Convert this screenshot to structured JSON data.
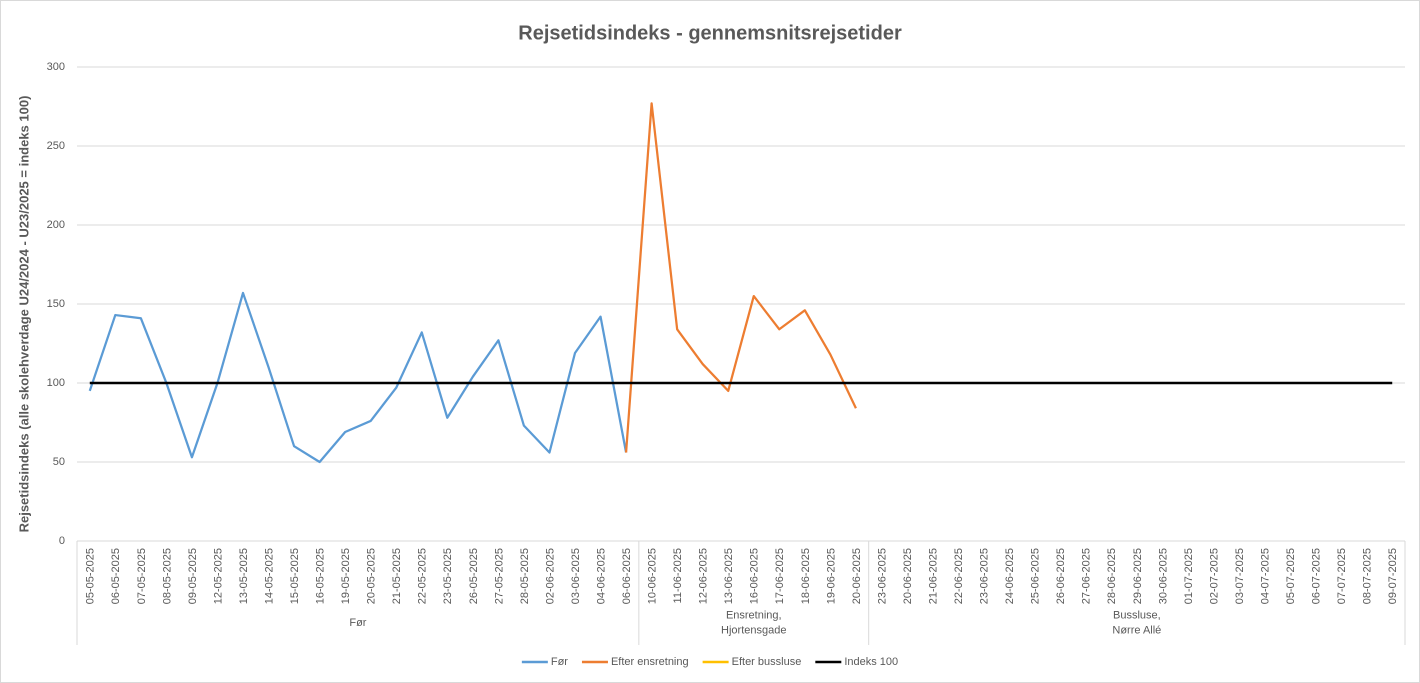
{
  "chart_data": {
    "type": "line",
    "title": "Rejsetidsindeks - gennemsnitsrejsetider",
    "y_label": "Rejsetidsindeks (alle skolehverdage U24/2024 - U23/2025 = indeks 100)",
    "categories": [
      "05-05-2025",
      "06-05-2025",
      "07-05-2025",
      "08-05-2025",
      "09-05-2025",
      "12-05-2025",
      "13-05-2025",
      "14-05-2025",
      "15-05-2025",
      "16-05-2025",
      "19-05-2025",
      "20-05-2025",
      "21-05-2025",
      "22-05-2025",
      "23-05-2025",
      "26-05-2025",
      "27-05-2025",
      "28-05-2025",
      "02-06-2025",
      "03-06-2025",
      "04-06-2025",
      "06-06-2025",
      "10-06-2025",
      "11-06-2025",
      "12-06-2025",
      "13-06-2025",
      "16-06-2025",
      "17-06-2025",
      "18-06-2025",
      "19-06-2025",
      "20-06-2025",
      "23-06-2025",
      "20-06-2025",
      "21-06-2025",
      "22-06-2025",
      "23-06-2025",
      "24-06-2025",
      "25-06-2025",
      "26-06-2025",
      "27-06-2025",
      "28-06-2025",
      "29-06-2025",
      "30-06-2025",
      "01-07-2025",
      "02-07-2025",
      "03-07-2025",
      "04-07-2025",
      "05-07-2025",
      "06-07-2025",
      "07-07-2025",
      "08-07-2025",
      "09-07-2025"
    ],
    "groups": [
      {
        "label": [
          "Før"
        ],
        "size": 22
      },
      {
        "label": [
          "Ensretning,",
          "Hjortensgade"
        ],
        "size": 9
      },
      {
        "label": [
          "Bussluse,",
          "Nørre Allé"
        ],
        "size": 21
      }
    ],
    "series": [
      {
        "name": "Før",
        "color": "#5b9bd5",
        "values": [
          95,
          143,
          141,
          100,
          53,
          100,
          157,
          110,
          60,
          50,
          69,
          76,
          97,
          132,
          78,
          104,
          127,
          73,
          56,
          119,
          142,
          56,
          null,
          null,
          null,
          null,
          null,
          null,
          null,
          null,
          null,
          null,
          null,
          null,
          null,
          null,
          null,
          null,
          null,
          null,
          null,
          null,
          null,
          null,
          null,
          null,
          null,
          null,
          null,
          null,
          null,
          null
        ]
      },
      {
        "name": "Efter ensretning",
        "color": "#ed7d31",
        "values": [
          null,
          null,
          null,
          null,
          null,
          null,
          null,
          null,
          null,
          null,
          null,
          null,
          null,
          null,
          null,
          null,
          null,
          null,
          null,
          null,
          null,
          56,
          277,
          134,
          112,
          95,
          155,
          134,
          146,
          118,
          84,
          null,
          null,
          null,
          null,
          null,
          null,
          null,
          null,
          null,
          null,
          null,
          null,
          null,
          null,
          null,
          null,
          null,
          null,
          null,
          null,
          null
        ]
      },
      {
        "name": "Efter bussluse",
        "color": "#ffc000",
        "values": [
          null,
          null,
          null,
          null,
          null,
          null,
          null,
          null,
          null,
          null,
          null,
          null,
          null,
          null,
          null,
          null,
          null,
          null,
          null,
          null,
          null,
          null,
          null,
          null,
          null,
          null,
          null,
          null,
          null,
          null,
          null,
          null,
          null,
          null,
          null,
          null,
          null,
          null,
          null,
          null,
          null,
          null,
          null,
          null,
          null,
          null,
          null,
          null,
          null,
          null,
          null,
          null
        ]
      },
      {
        "name": "Indeks 100",
        "color": "#000000",
        "values": [
          100,
          100,
          100,
          100,
          100,
          100,
          100,
          100,
          100,
          100,
          100,
          100,
          100,
          100,
          100,
          100,
          100,
          100,
          100,
          100,
          100,
          100,
          100,
          100,
          100,
          100,
          100,
          100,
          100,
          100,
          100,
          100,
          100,
          100,
          100,
          100,
          100,
          100,
          100,
          100,
          100,
          100,
          100,
          100,
          100,
          100,
          100,
          100,
          100,
          100,
          100,
          100
        ]
      }
    ],
    "ylim": [
      0,
      300
    ],
    "yticks": [
      0,
      50,
      100,
      150,
      200,
      250,
      300
    ],
    "grid": true,
    "legend": "bottom"
  }
}
